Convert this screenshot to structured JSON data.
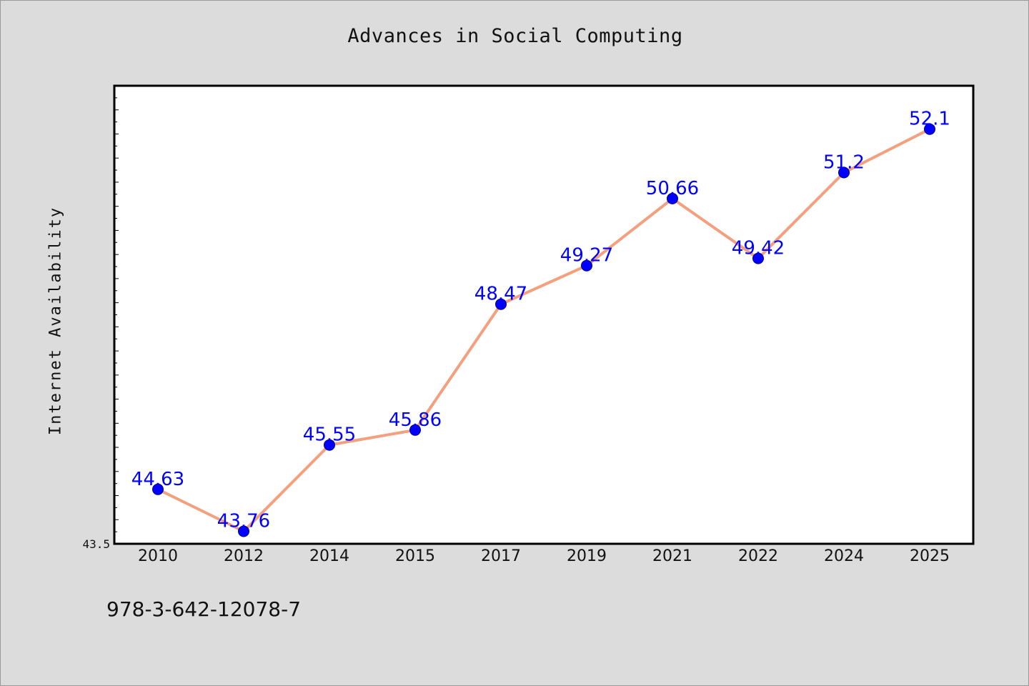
{
  "chart_data": {
    "type": "line",
    "title": "Advances in Social Computing",
    "xlabel": "",
    "ylabel": "Internet Availability",
    "categories": [
      "2010",
      "2012",
      "2014",
      "2015",
      "2017",
      "2019",
      "2021",
      "2022",
      "2024",
      "2025"
    ],
    "series": [
      {
        "values": [
          44.63,
          43.76,
          45.55,
          45.86,
          48.47,
          49.27,
          50.66,
          49.42,
          51.2,
          52.1
        ]
      }
    ],
    "data_labels": [
      "44.63",
      "43.76",
      "45.55",
      "45.86",
      "48.47",
      "49.27",
      "50.66",
      "49.42",
      "51.2",
      "52.1"
    ],
    "ylim": [
      43.5,
      53.0
    ],
    "y_min_tick_label": "43.5",
    "grid": false,
    "legend": "none",
    "colors": {
      "line": "#f4a07e",
      "marker": "#0000ff",
      "data_label": "#0000ff",
      "plot_background": "#ffffff",
      "page_background": "#dcdcdc"
    }
  },
  "footer_text": "978-3-642-12078-7"
}
